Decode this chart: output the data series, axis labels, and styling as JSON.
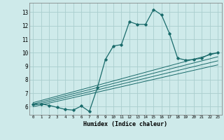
{
  "xlabel": "Humidex (Indice chaleur)",
  "bg_color": "#ceeaea",
  "grid_color": "#aacece",
  "line_color": "#1a6b6b",
  "xlim": [
    -0.5,
    23.5
  ],
  "ylim": [
    5.4,
    13.7
  ],
  "yticks": [
    6,
    7,
    8,
    9,
    10,
    11,
    12,
    13
  ],
  "xticks": [
    0,
    1,
    2,
    3,
    4,
    5,
    6,
    7,
    8,
    9,
    10,
    11,
    12,
    13,
    14,
    15,
    16,
    17,
    18,
    19,
    20,
    21,
    22,
    23
  ],
  "main_x": [
    0,
    1,
    2,
    3,
    4,
    5,
    6,
    7,
    8,
    9,
    10,
    11,
    12,
    13,
    14,
    15,
    16,
    17,
    18,
    19,
    20,
    21,
    22,
    23
  ],
  "main_y": [
    6.2,
    6.2,
    6.1,
    5.95,
    5.8,
    5.75,
    6.05,
    5.65,
    7.4,
    9.5,
    10.5,
    10.6,
    12.3,
    12.1,
    12.1,
    13.2,
    12.8,
    11.4,
    9.6,
    9.45,
    9.5,
    9.6,
    9.9,
    10.0
  ],
  "diag_lines": [
    {
      "x": [
        0,
        23
      ],
      "y": [
        6.3,
        10.0
      ]
    },
    {
      "x": [
        0,
        23
      ],
      "y": [
        6.2,
        9.7
      ]
    },
    {
      "x": [
        0,
        23
      ],
      "y": [
        6.1,
        9.4
      ]
    },
    {
      "x": [
        0,
        23
      ],
      "y": [
        6.0,
        9.1
      ]
    }
  ]
}
